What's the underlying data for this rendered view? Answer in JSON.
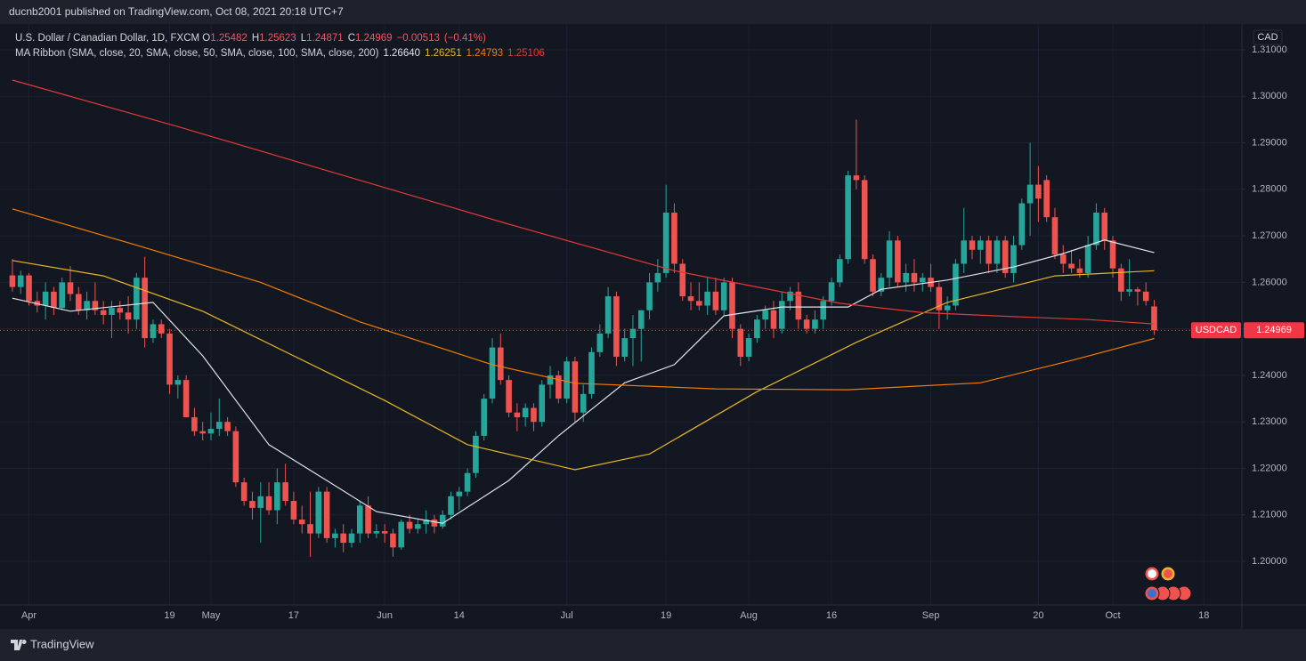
{
  "header": {
    "publisher": "ducnb2001 published on TradingView.com, Oct 08, 2021 20:18 UTC+7"
  },
  "footer": {
    "brand": "TradingView"
  },
  "chart_data": {
    "type": "candlestick",
    "symbol_title": "U.S. Dollar / Canadian Dollar, 1D, FXCM",
    "ohlc_labels": [
      "O",
      "H",
      "L",
      "C"
    ],
    "change": "−0.00513",
    "change_pct": "(−0.41%)",
    "indicator_title": "MA Ribbon (SMA, close, 20, SMA, close, 50, SMA, close, 100, SMA, close, 200)",
    "currency": "CAD",
    "price_tag": "USDCAD",
    "up_color": "#26a69a",
    "down_color": "#ef5350",
    "open": [
      1.2615,
      1.259,
      1.2615,
      1.256,
      1.255,
      1.258,
      1.2545,
      1.26,
      1.2575,
      1.254,
      1.256,
      1.254,
      1.253,
      1.2545,
      1.2535,
      1.252,
      1.261,
      1.248,
      1.251,
      1.249,
      1.238,
      1.239,
      1.231,
      1.228,
      1.2275,
      1.2285,
      1.23,
      1.228,
      1.217,
      1.213,
      1.2115,
      1.214,
      1.211,
      1.217,
      1.213,
      1.209,
      1.208,
      1.206,
      1.215,
      1.205,
      1.206,
      1.204,
      1.206,
      1.212,
      1.206,
      1.2065,
      1.206,
      1.203,
      1.2085,
      1.207,
      1.208,
      1.209,
      1.2075,
      1.21,
      1.214,
      1.215,
      1.219,
      1.227,
      1.235,
      1.246,
      1.239,
      1.232,
      1.231,
      1.233,
      1.23,
      1.238,
      1.24,
      1.235,
      1.243,
      1.232,
      1.236,
      1.245,
      1.249,
      1.257,
      1.244,
      1.248,
      1.25,
      1.254,
      1.26,
      1.262,
      1.275,
      1.264,
      1.257,
      1.256,
      1.255,
      1.258,
      1.254,
      1.26,
      1.25,
      1.244,
      1.248,
      1.252,
      1.254,
      1.25,
      1.256,
      1.258,
      1.252,
      1.25,
      1.252,
      1.256,
      1.26,
      1.265,
      1.283,
      1.282,
      1.265,
      1.258,
      1.261,
      1.269,
      1.26,
      1.262,
      1.26,
      1.261,
      1.259,
      1.254,
      1.255,
      1.264,
      1.269,
      1.267,
      1.269,
      1.264,
      1.269,
      1.262,
      1.268,
      1.277,
      1.281,
      1.282,
      1.274,
      1.266,
      1.264,
      1.263,
      1.262,
      1.268,
      1.275,
      1.269,
      1.263,
      1.258,
      1.2585,
      1.258,
      1.25482
    ],
    "high": [
      1.265,
      1.2625,
      1.262,
      1.258,
      1.26,
      1.259,
      1.261,
      1.2635,
      1.259,
      1.258,
      1.26,
      1.256,
      1.256,
      1.256,
      1.257,
      1.262,
      1.2655,
      1.252,
      1.252,
      1.25,
      1.24,
      1.24,
      1.233,
      1.23,
      1.232,
      1.235,
      1.231,
      1.229,
      1.218,
      1.215,
      1.217,
      1.217,
      1.22,
      1.221,
      1.215,
      1.212,
      1.215,
      1.216,
      1.216,
      1.207,
      1.208,
      1.207,
      1.213,
      1.214,
      1.208,
      1.208,
      1.207,
      1.209,
      1.21,
      1.209,
      1.211,
      1.21,
      1.211,
      1.215,
      1.216,
      1.22,
      1.228,
      1.236,
      1.248,
      1.249,
      1.24,
      1.234,
      1.234,
      1.234,
      1.239,
      1.242,
      1.241,
      1.244,
      1.244,
      1.238,
      1.246,
      1.251,
      1.259,
      1.258,
      1.25,
      1.253,
      1.254,
      1.262,
      1.265,
      1.281,
      1.277,
      1.265,
      1.26,
      1.26,
      1.261,
      1.261,
      1.261,
      1.261,
      1.251,
      1.249,
      1.253,
      1.255,
      1.256,
      1.258,
      1.259,
      1.26,
      1.253,
      1.254,
      1.257,
      1.261,
      1.266,
      1.284,
      1.295,
      1.283,
      1.266,
      1.262,
      1.271,
      1.27,
      1.264,
      1.265,
      1.262,
      1.264,
      1.26,
      1.257,
      1.265,
      1.276,
      1.27,
      1.27,
      1.27,
      1.27,
      1.27,
      1.27,
      1.278,
      1.29,
      1.285,
      1.283,
      1.276,
      1.268,
      1.267,
      1.265,
      1.27,
      1.277,
      1.276,
      1.27,
      1.264,
      1.265,
      1.259,
      1.26,
      1.25623
    ],
    "low": [
      1.258,
      1.2575,
      1.255,
      1.2535,
      1.252,
      1.253,
      1.254,
      1.256,
      1.253,
      1.252,
      1.253,
      1.251,
      1.248,
      1.252,
      1.249,
      1.25,
      1.246,
      1.247,
      1.248,
      1.236,
      1.235,
      1.231,
      1.227,
      1.226,
      1.226,
      1.227,
      1.227,
      1.216,
      1.212,
      1.209,
      1.204,
      1.21,
      1.208,
      1.212,
      1.208,
      1.206,
      1.201,
      1.205,
      1.204,
      1.203,
      1.202,
      1.203,
      1.204,
      1.205,
      1.205,
      1.204,
      1.201,
      1.2025,
      1.206,
      1.206,
      1.206,
      1.206,
      1.207,
      1.209,
      1.211,
      1.214,
      1.218,
      1.226,
      1.234,
      1.238,
      1.231,
      1.228,
      1.229,
      1.228,
      1.229,
      1.235,
      1.234,
      1.234,
      1.23,
      1.23,
      1.235,
      1.244,
      1.248,
      1.242,
      1.243,
      1.242,
      1.243,
      1.252,
      1.258,
      1.261,
      1.262,
      1.256,
      1.254,
      1.254,
      1.253,
      1.253,
      1.253,
      1.248,
      1.242,
      1.243,
      1.247,
      1.25,
      1.248,
      1.249,
      1.254,
      1.25,
      1.249,
      1.249,
      1.25,
      1.255,
      1.259,
      1.264,
      1.28,
      1.264,
      1.257,
      1.257,
      1.259,
      1.259,
      1.258,
      1.258,
      1.258,
      1.258,
      1.25,
      1.252,
      1.254,
      1.262,
      1.265,
      1.264,
      1.262,
      1.262,
      1.261,
      1.26,
      1.267,
      1.27,
      1.273,
      1.273,
      1.265,
      1.262,
      1.262,
      1.261,
      1.261,
      1.267,
      1.267,
      1.261,
      1.256,
      1.257,
      1.255,
      1.255,
      1.24871
    ],
    "close": [
      1.259,
      1.2615,
      1.256,
      1.255,
      1.258,
      1.2545,
      1.26,
      1.2575,
      1.254,
      1.256,
      1.254,
      1.253,
      1.2545,
      1.2535,
      1.252,
      1.261,
      1.248,
      1.251,
      1.249,
      1.238,
      1.239,
      1.231,
      1.228,
      1.2275,
      1.2285,
      1.23,
      1.228,
      1.217,
      1.213,
      1.2115,
      1.214,
      1.211,
      1.217,
      1.213,
      1.209,
      1.208,
      1.206,
      1.215,
      1.205,
      1.206,
      1.204,
      1.206,
      1.212,
      1.206,
      1.2065,
      1.206,
      1.203,
      1.2085,
      1.207,
      1.208,
      1.209,
      1.2075,
      1.21,
      1.214,
      1.215,
      1.219,
      1.227,
      1.235,
      1.246,
      1.239,
      1.232,
      1.231,
      1.233,
      1.23,
      1.238,
      1.24,
      1.235,
      1.243,
      1.232,
      1.236,
      1.245,
      1.249,
      1.257,
      1.244,
      1.248,
      1.25,
      1.254,
      1.26,
      1.262,
      1.275,
      1.264,
      1.257,
      1.256,
      1.255,
      1.258,
      1.254,
      1.26,
      1.25,
      1.244,
      1.248,
      1.252,
      1.254,
      1.25,
      1.256,
      1.258,
      1.252,
      1.25,
      1.252,
      1.256,
      1.26,
      1.265,
      1.283,
      1.282,
      1.265,
      1.258,
      1.261,
      1.269,
      1.26,
      1.262,
      1.26,
      1.261,
      1.259,
      1.254,
      1.255,
      1.264,
      1.269,
      1.267,
      1.269,
      1.264,
      1.269,
      1.262,
      1.268,
      1.277,
      1.281,
      1.278,
      1.274,
      1.266,
      1.264,
      1.263,
      1.262,
      1.268,
      1.275,
      1.269,
      1.263,
      1.258,
      1.2585,
      1.258,
      1.256,
      1.24969
    ],
    "moving_averages": [
      {
        "color": "#e0e3eb",
        "x": [
          0,
          7,
          17,
          23,
          31,
          38,
          44,
          52,
          60,
          66,
          74,
          80,
          86,
          93,
          101,
          105,
          113,
          121,
          127,
          132,
          138
        ],
        "values": [
          1.2566,
          1.2538,
          1.2557,
          1.2442,
          1.2251,
          1.2174,
          1.2107,
          1.2082,
          1.2174,
          1.227,
          1.2384,
          1.2423,
          1.2528,
          1.2547,
          1.2547,
          1.2585,
          1.2605,
          1.2633,
          1.2662,
          1.2691,
          1.2664
        ],
        "last_label": "1.26640"
      },
      {
        "color": "#e8b523",
        "x": [
          0,
          11,
          23,
          34,
          45,
          55,
          68,
          77,
          90,
          102,
          113,
          126,
          138
        ],
        "values": [
          1.2647,
          1.2614,
          1.2538,
          1.2442,
          1.2346,
          1.2251,
          1.2197,
          1.2231,
          1.2365,
          1.2471,
          1.2557,
          1.2614,
          1.26251
        ],
        "last_label": "1.26251"
      },
      {
        "color": "#f57c00",
        "x": [
          0,
          15,
          30,
          42,
          58,
          68,
          85,
          101,
          117,
          128,
          138
        ],
        "values": [
          1.2758,
          1.268,
          1.26,
          1.2515,
          1.2423,
          1.2383,
          1.2371,
          1.2369,
          1.2384,
          1.2432,
          1.24793
        ],
        "last_label": "1.24793"
      },
      {
        "color": "#e53935",
        "x": [
          0,
          20,
          40,
          60,
          80,
          90,
          100,
          110,
          120,
          130,
          138
        ],
        "values": [
          1.3035,
          1.2935,
          1.283,
          1.2725,
          1.2625,
          1.259,
          1.2555,
          1.2535,
          1.2527,
          1.252,
          1.25106
        ],
        "last_label": "1.25106"
      }
    ],
    "xlim": [
      -1.5,
      148.6
    ],
    "xticks": [
      {
        "value": 2,
        "label": "Apr"
      },
      19,
      {
        "value": 24,
        "label": "May"
      },
      {
        "value": 34,
        "label": "17"
      },
      {
        "value": 45,
        "label": "Jun"
      },
      {
        "value": 54,
        "label": "14"
      },
      {
        "value": 67,
        "label": "Jul"
      },
      {
        "value": 79,
        "label": "19"
      },
      {
        "value": 89,
        "label": "Aug"
      },
      {
        "value": 99,
        "label": "16"
      },
      {
        "value": 111,
        "label": "Sep"
      },
      {
        "value": 124,
        "label": "20"
      },
      {
        "value": 133,
        "label": "Oct"
      },
      {
        "value": 144,
        "label": "18"
      }
    ],
    "ylim": [
      1.19063,
      1.31555
    ],
    "yticks": [
      {
        "value": 1.2,
        "label": "1.20000"
      },
      {
        "value": 1.21,
        "label": "1.21000"
      },
      {
        "value": 1.22,
        "label": "1.22000"
      },
      {
        "value": 1.23,
        "label": "1.23000"
      },
      {
        "value": 1.24,
        "label": "1.24000"
      },
      {
        "value": 1.25,
        "label": "1.25000"
      },
      {
        "value": 1.26,
        "label": "1.26000"
      },
      {
        "value": 1.27,
        "label": "1.27000"
      },
      {
        "value": 1.28,
        "label": "1.28000"
      },
      {
        "value": 1.29,
        "label": "1.29000"
      },
      {
        "value": 1.3,
        "label": "1.30000"
      },
      {
        "value": 1.31,
        "label": "1.31000"
      }
    ],
    "grid": true
  }
}
